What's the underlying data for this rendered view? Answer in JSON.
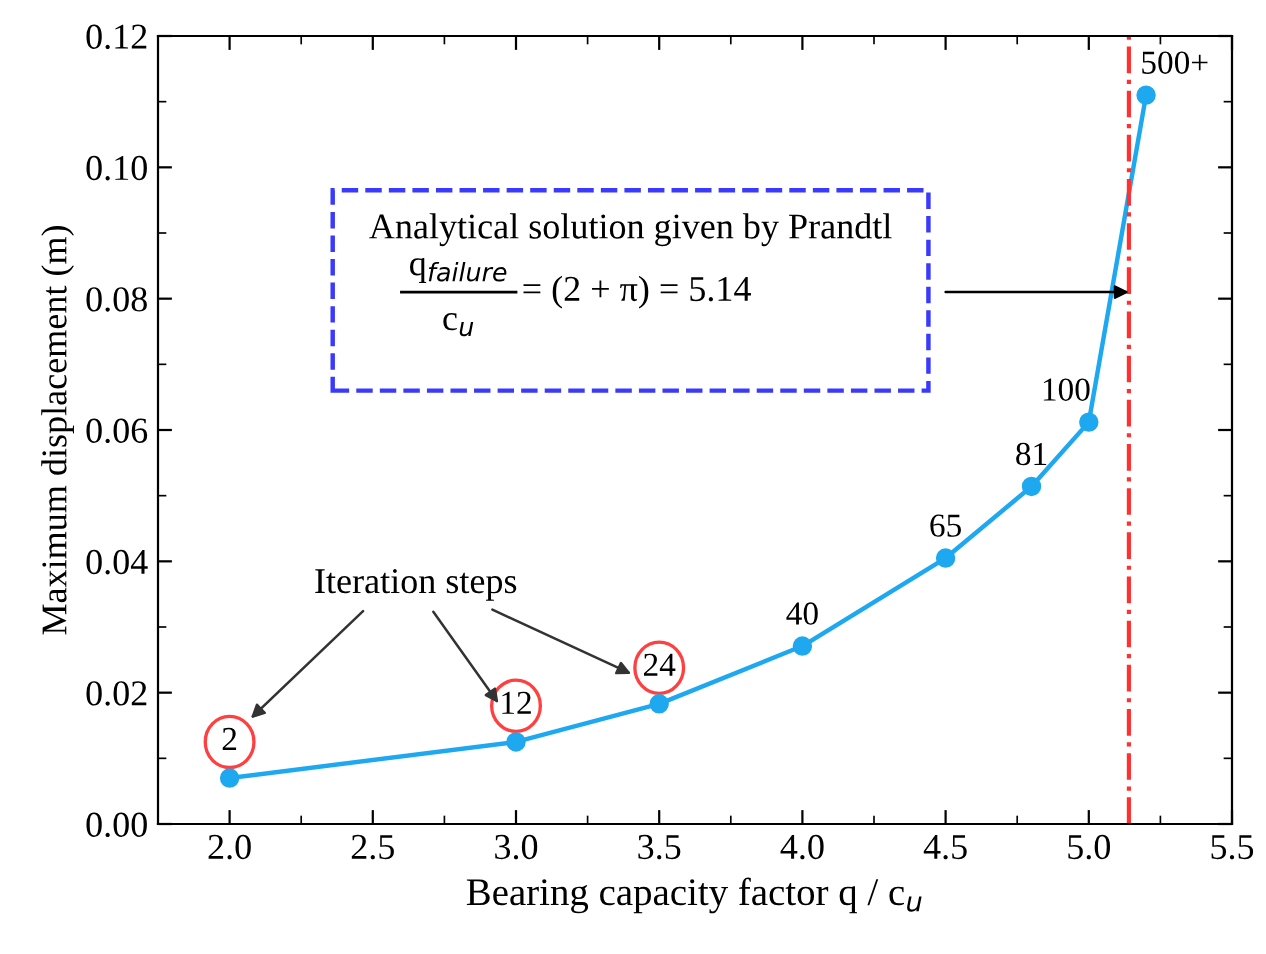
{
  "chart_data": {
    "type": "line",
    "xlabel": "Bearing capacity factor q / c$_{u}$",
    "ylabel": "Maximum displacement (m)",
    "x": [
      2.0,
      3.0,
      3.5,
      4.0,
      4.5,
      4.8,
      5.0,
      5.2
    ],
    "series": [
      {
        "color": "#1ea8f0",
        "values": [
          0.007,
          0.0125,
          0.0183,
          0.0271,
          0.0405,
          0.0514,
          0.0612,
          0.111
        ]
      }
    ],
    "marker": "circle",
    "line_style": "solid",
    "grid": false,
    "xlim": [
      1.75,
      5.5
    ],
    "ylim": [
      0,
      0.12
    ],
    "xticks": [
      {
        "value": 2.0,
        "label": "2.0"
      },
      {
        "value": 2.5,
        "label": "2.5"
      },
      {
        "value": 3.0,
        "label": "3.0"
      },
      {
        "value": 3.5,
        "label": "3.5"
      },
      {
        "value": 4.0,
        "label": "4.0"
      },
      {
        "value": 4.5,
        "label": "4.5"
      },
      {
        "value": 5.0,
        "label": "5.0"
      },
      {
        "value": 5.5,
        "label": "5.5"
      }
    ],
    "yticks": [
      {
        "value": 0,
        "label": "0.00"
      },
      {
        "value": 0.02,
        "label": "0.02"
      },
      {
        "value": 0.04,
        "label": "0.04"
      },
      {
        "value": 0.06,
        "label": "0.06"
      },
      {
        "value": 0.08,
        "label": "0.08"
      },
      {
        "value": 0.1,
        "label": "0.10"
      },
      {
        "value": 0.12,
        "label": "0.12"
      }
    ],
    "ref_lines": [
      {
        "axis": "x",
        "value": 5.14,
        "color": "#ff3030",
        "line_style": "dashdot"
      }
    ],
    "annotations": [
      "Analytical solution given by Prandtl",
      "q$_{failure}$",
      "c$_{u}$",
      "= (2 + π) = 5.14",
      "Iteration steps",
      {
        "text": "2",
        "x": 2.0,
        "y": 0.007
      },
      {
        "text": "12",
        "x": 3.0,
        "y": 0.0125
      },
      {
        "text": "24",
        "x": 3.5,
        "y": 0.0183
      },
      {
        "text": "40",
        "x": 4.0,
        "y": 0.0271
      },
      {
        "text": "65",
        "x": 4.5,
        "y": 0.0405
      },
      {
        "text": "81",
        "x": 4.8,
        "y": 0.0514
      },
      {
        "text": "100",
        "x": 5.0,
        "y": 0.0612
      },
      {
        "text": "500+",
        "x": 5.2,
        "y": 0.111
      }
    ]
  }
}
